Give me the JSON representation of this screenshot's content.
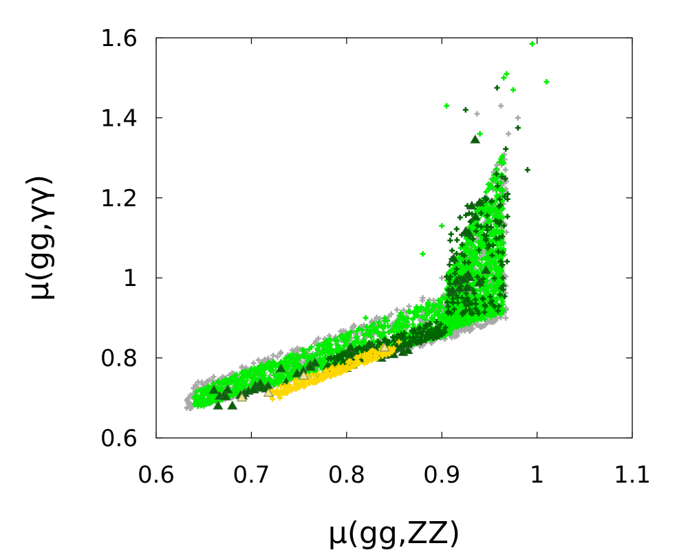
{
  "chart_data": {
    "type": "scatter",
    "xlabel": "μ(gg,ZZ)",
    "ylabel": "μ(gg,γγ)",
    "xlim": [
      0.6,
      1.1
    ],
    "ylim": [
      0.6,
      1.6
    ],
    "xticks": [
      "0.6",
      "0.7",
      "0.8",
      "0.9",
      "1",
      "1.1"
    ],
    "yticks": [
      "0.6",
      "0.8",
      "1",
      "1.2",
      "1.4",
      "1.6"
    ],
    "grid": false,
    "legend": "none",
    "colors": {
      "gray": "#a9a9a9",
      "green": "#00ee00",
      "dark_green": "#006400",
      "yellow": "#ffd700",
      "pale_triangle": "#f0e68c"
    },
    "series": [
      {
        "marker": "plus",
        "color": "#a9a9a9",
        "regions": [
          {
            "x": [
              0.632,
              0.91
            ],
            "y_low": [
              0.67,
              0.85
            ],
            "y_high": [
              0.73,
              0.97
            ],
            "n": 700
          },
          {
            "x": [
              0.91,
              0.968
            ],
            "y_low": [
              0.85,
              0.9
            ],
            "y_high": [
              1.0,
              1.35
            ],
            "n": 450
          }
        ],
        "points": [
          [
            0.632,
            0.675
          ],
          [
            0.937,
            1.41
          ],
          [
            0.962,
            1.43
          ],
          [
            0.98,
            1.4
          ],
          [
            0.97,
            1.36
          ],
          [
            0.9,
            1.0
          ],
          [
            0.88,
            0.95
          ]
        ]
      },
      {
        "marker": "plus",
        "color": "#00ee00",
        "regions": [
          {
            "x": [
              0.64,
              0.91
            ],
            "y_low": [
              0.675,
              0.86
            ],
            "y_high": [
              0.72,
              0.96
            ],
            "n": 900
          },
          {
            "x": [
              0.905,
              0.965
            ],
            "y_low": [
              0.87,
              0.91
            ],
            "y_high": [
              1.0,
              1.32
            ],
            "n": 900
          }
        ],
        "points": [
          [
            0.65,
            0.68
          ],
          [
            0.995,
            1.585
          ],
          [
            1.01,
            1.49
          ],
          [
            0.968,
            1.51
          ],
          [
            0.965,
            1.5
          ],
          [
            0.975,
            1.47
          ],
          [
            0.94,
            1.36
          ],
          [
            0.905,
            1.43
          ],
          [
            0.88,
            1.06
          ],
          [
            0.84,
            0.9
          ],
          [
            0.82,
            0.9
          ],
          [
            0.9,
            1.13
          ],
          [
            0.92,
            1.02
          ]
        ]
      },
      {
        "marker": "plus",
        "color": "#006400",
        "regions": [
          {
            "x": [
              0.78,
              0.905
            ],
            "y_low": [
              0.76,
              0.86
            ],
            "y_high": [
              0.8,
              0.9
            ],
            "n": 250
          },
          {
            "x": [
              0.905,
              0.97
            ],
            "y_low": [
              0.9,
              0.92
            ],
            "y_high": [
              1.1,
              1.35
            ],
            "n": 160
          }
        ],
        "points": [
          [
            0.958,
            1.475
          ],
          [
            0.98,
            1.375
          ],
          [
            0.925,
            1.42
          ],
          [
            0.99,
            1.27
          ],
          [
            0.96,
            1.1
          ],
          [
            0.93,
            1.14
          ]
        ]
      },
      {
        "marker": "triangle",
        "color": "#006400",
        "regions": [
          {
            "x": [
              0.66,
              0.87
            ],
            "y_low": [
              0.68,
              0.82
            ],
            "y_high": [
              0.73,
              0.87
            ],
            "n": 40
          },
          {
            "x": [
              0.91,
              0.96
            ],
            "y_low": [
              0.95,
              1.0
            ],
            "y_high": [
              1.1,
              1.3
            ],
            "n": 15
          }
        ],
        "points": [
          [
            0.665,
            0.68
          ],
          [
            0.68,
            0.68
          ],
          [
            0.935,
            1.345
          ]
        ]
      },
      {
        "marker": "plus",
        "color": "#ffd700",
        "regions": [
          {
            "x": [
              0.72,
              0.85
            ],
            "y_low": [
              0.695,
              0.815
            ],
            "y_high": [
              0.72,
              0.84
            ],
            "n": 220
          }
        ],
        "points": [
          [
            0.73,
            0.7
          ],
          [
            0.81,
            0.79
          ],
          [
            0.855,
            0.84
          ]
        ]
      },
      {
        "marker": "triangle",
        "color": "#f0e68c",
        "points": [
          [
            0.69,
            0.7
          ],
          [
            0.755,
            0.755
          ],
          [
            0.84,
            0.825
          ],
          [
            0.718,
            0.712
          ]
        ]
      }
    ]
  }
}
